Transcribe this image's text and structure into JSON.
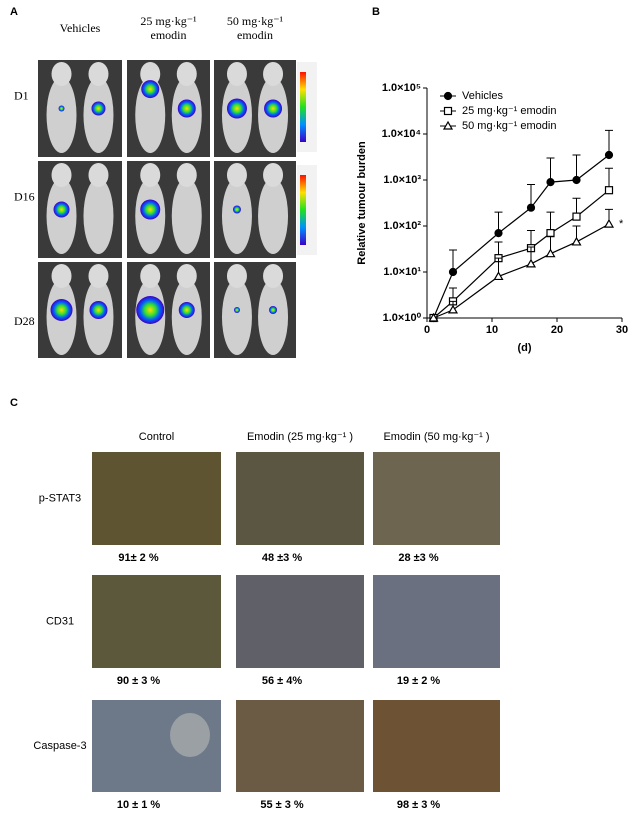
{
  "panels": {
    "a": "A",
    "b": "B",
    "c": "C"
  },
  "panel_a": {
    "columns": [
      [
        "Vehicles"
      ],
      [
        "25 mg·kg⁻¹",
        "emodin"
      ],
      [
        "50 mg·kg⁻¹",
        "emodin"
      ]
    ],
    "rows": [
      "D1",
      "D16",
      "D28"
    ]
  },
  "chart_data": {
    "type": "line",
    "y_label": "Relative tumour burden",
    "x_label": "(d)",
    "x": [
      1,
      4,
      11,
      16,
      19,
      23,
      28
    ],
    "xlim": [
      0,
      30
    ],
    "xticks": [
      0,
      10,
      20,
      30
    ],
    "ylim": [
      1,
      100000
    ],
    "log_y": true,
    "yticks": [
      {
        "value": 1,
        "label": "1.0×10⁰"
      },
      {
        "value": 10,
        "label": "1.0×10¹"
      },
      {
        "value": 100,
        "label": "1.0×10²"
      },
      {
        "value": 1000,
        "label": "1.0×10³"
      },
      {
        "value": 10000,
        "label": "1.0×10⁴"
      },
      {
        "value": 100000,
        "label": "1.0×10⁵"
      }
    ],
    "legend": "upper left",
    "series": [
      {
        "name": "Vehicles",
        "color": "#000000",
        "marker": "filled-circle",
        "values": [
          1,
          10,
          70,
          250,
          900,
          1000,
          3500
        ],
        "errors": [
          0,
          20,
          130,
          550,
          2100,
          2500,
          8500
        ]
      },
      {
        "name": "25 mg·kg⁻¹ emodin",
        "color": "#000000",
        "marker": "open-square",
        "values": [
          1,
          2.3,
          20,
          33,
          70,
          160,
          600
        ],
        "errors": [
          0,
          2.2,
          25,
          47,
          130,
          240,
          1200
        ]
      },
      {
        "name": "50 mg·kg⁻¹ emodin",
        "color": "#000000",
        "marker": "open-triangle",
        "values": [
          1,
          1.5,
          8,
          15,
          25,
          45,
          110
        ],
        "errors": [
          0,
          0.8,
          12,
          20,
          35,
          55,
          120
        ]
      }
    ],
    "annotation": "*"
  },
  "panel_c": {
    "columns": [
      "Control",
      "Emodin (25 mg·kg⁻¹ )",
      "Emodin (50 mg·kg⁻¹ )"
    ],
    "rows": [
      {
        "label": "p-STAT3",
        "values": [
          "91± 2 %",
          "48 ±3 %",
          "28 ±3 %"
        ]
      },
      {
        "label": "CD31",
        "values": [
          "90 ± 3 %",
          "56 ± 4%",
          "19 ± 2 %"
        ]
      },
      {
        "label": "Caspase-3",
        "values": [
          "10 ± 1 %",
          "55 ± 3 %",
          "98 ± 3 %"
        ]
      }
    ]
  }
}
